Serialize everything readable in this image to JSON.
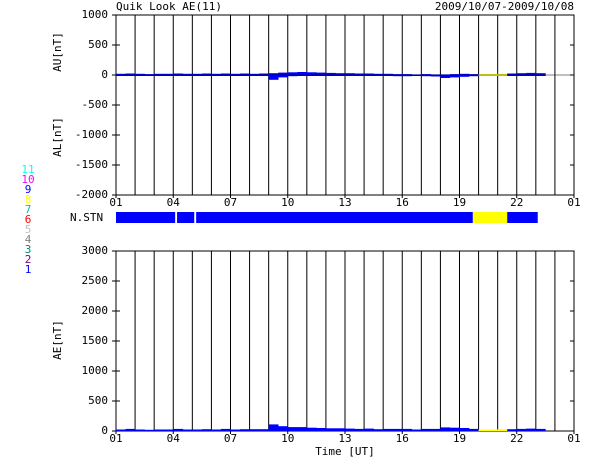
{
  "header": {
    "title": "Quik Look AE(11)",
    "date_range": "2009/10/07-2009/10/08"
  },
  "stations": [
    {
      "label": "1",
      "color": "#0000ff"
    },
    {
      "label": "2",
      "color": "#800080"
    },
    {
      "label": "3",
      "color": "#008080"
    },
    {
      "label": "4",
      "color": "#808080"
    },
    {
      "label": "5",
      "color": "#c0c0c0"
    },
    {
      "label": "6",
      "color": "#ff0000"
    },
    {
      "label": "7",
      "color": "#00c0a0"
    },
    {
      "label": "8",
      "color": "#ffff00"
    },
    {
      "label": "9",
      "color": "#0000ff"
    },
    {
      "label": "10",
      "color": "#ff00ff"
    },
    {
      "label": "11",
      "color": "#00ffff"
    }
  ],
  "n_stations": {
    "label": "N.STN",
    "segments": [
      {
        "start": 1,
        "end": 4.1,
        "n": 9
      },
      {
        "start": 4.2,
        "end": 5.1,
        "n": 9
      },
      {
        "start": 5.2,
        "end": 19.7,
        "n": 9
      },
      {
        "start": 19.7,
        "end": 21.5,
        "n": 8
      },
      {
        "start": 21.5,
        "end": 23.1,
        "n": 9
      }
    ]
  },
  "x_label": "Time [UT]",
  "chart_data": [
    {
      "type": "bar",
      "ylabel_upper": "AU[nT]",
      "ylabel_lower": "AL[nT]",
      "x": [
        1,
        1.5,
        2,
        2.5,
        3,
        3.5,
        4,
        4.5,
        5,
        5.5,
        6,
        6.5,
        7,
        7.5,
        8,
        8.5,
        9,
        9.5,
        10,
        10.5,
        11,
        11.5,
        12,
        12.5,
        13,
        13.5,
        14,
        14.5,
        15,
        15.5,
        16,
        16.5,
        17,
        17.5,
        18,
        18.5,
        19,
        19.5,
        20,
        20.5,
        21,
        21.5,
        22,
        22.5,
        23
      ],
      "series": [
        {
          "values": [
            20,
            25,
            20,
            15,
            20,
            20,
            25,
            20,
            20,
            25,
            20,
            25,
            20,
            25,
            20,
            25,
            30,
            40,
            45,
            50,
            45,
            40,
            35,
            30,
            30,
            25,
            25,
            20,
            20,
            15,
            15,
            10,
            15,
            10,
            10,
            15,
            20,
            15,
            15,
            15,
            20,
            25,
            30,
            35,
            30
          ]
        },
        {
          "values": [
            -5,
            -10,
            -5,
            -5,
            -5,
            -5,
            -10,
            -5,
            -5,
            -5,
            -5,
            -10,
            -5,
            -5,
            -10,
            -5,
            -80,
            -40,
            -20,
            -15,
            -10,
            -10,
            -10,
            -15,
            -10,
            -10,
            -15,
            -10,
            -15,
            -20,
            -20,
            -15,
            -20,
            -25,
            -50,
            -40,
            -30,
            -20,
            -10,
            -10,
            -10,
            -5,
            -5,
            -5,
            -5
          ]
        }
      ],
      "xlim": [
        1,
        25
      ],
      "xticks": [
        {
          "value": 1,
          "label": "01"
        },
        {
          "value": 4,
          "label": "04"
        },
        {
          "value": 7,
          "label": "07"
        },
        10,
        13,
        16,
        19,
        22,
        {
          "value": 25,
          "label": "01"
        }
      ],
      "xgrid": [
        2,
        3,
        5,
        6,
        8,
        9,
        11,
        12,
        14,
        15,
        17,
        18,
        20,
        21,
        23,
        24
      ],
      "ylim": [
        -2000,
        1000
      ],
      "yticks": [
        -2000,
        -1500,
        -1000,
        -500,
        0,
        500,
        1000
      ]
    },
    {
      "type": "bar",
      "ylabel": "AE[nT]",
      "x": [
        1,
        1.5,
        2,
        2.5,
        3,
        3.5,
        4,
        4.5,
        5,
        5.5,
        6,
        6.5,
        7,
        7.5,
        8,
        8.5,
        9,
        9.5,
        10,
        10.5,
        11,
        11.5,
        12,
        12.5,
        13,
        13.5,
        14,
        14.5,
        15,
        15.5,
        16,
        16.5,
        17,
        17.5,
        18,
        18.5,
        19,
        19.5,
        20,
        20.5,
        21,
        21.5,
        22,
        22.5,
        23
      ],
      "series": [
        {
          "values": [
            25,
            35,
            25,
            20,
            25,
            25,
            35,
            25,
            25,
            30,
            25,
            35,
            25,
            30,
            30,
            30,
            110,
            80,
            65,
            65,
            55,
            50,
            45,
            45,
            40,
            35,
            40,
            30,
            35,
            35,
            35,
            25,
            35,
            35,
            60,
            55,
            50,
            35,
            25,
            25,
            30,
            30,
            35,
            40,
            35
          ]
        }
      ],
      "xlim": [
        1,
        25
      ],
      "xticks": [
        {
          "value": 1,
          "label": "01"
        },
        {
          "value": 4,
          "label": "04"
        },
        {
          "value": 7,
          "label": "07"
        },
        10,
        13,
        16,
        19,
        22,
        {
          "value": 25,
          "label": "01"
        }
      ],
      "xgrid": [
        2,
        3,
        5,
        6,
        8,
        9,
        11,
        12,
        14,
        15,
        17,
        18,
        20,
        21,
        23,
        24
      ],
      "ylim": [
        0,
        3000
      ],
      "yticks": [
        0,
        500,
        1000,
        1500,
        2000,
        2500,
        3000
      ]
    }
  ]
}
